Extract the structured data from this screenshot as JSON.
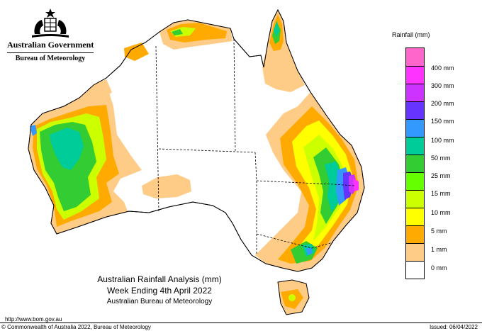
{
  "header": {
    "gov_title": "Australian Government",
    "agency": "Bureau of Meteorology"
  },
  "legend": {
    "title": "Rainfall (mm)",
    "bins": [
      {
        "label": "",
        "color": "#ff66cc"
      },
      {
        "label": "400 mm",
        "color": "#ff33ff"
      },
      {
        "label": "300 mm",
        "color": "#cc33ff"
      },
      {
        "label": "200 mm",
        "color": "#6633ff"
      },
      {
        "label": "150 mm",
        "color": "#3399ff"
      },
      {
        "label": "100 mm",
        "color": "#00cc99"
      },
      {
        "label": "50 mm",
        "color": "#33cc33"
      },
      {
        "label": "25 mm",
        "color": "#66ff00"
      },
      {
        "label": "15 mm",
        "color": "#ccff00"
      },
      {
        "label": "10 mm",
        "color": "#ffff00"
      },
      {
        "label": "5 mm",
        "color": "#ffaa00"
      },
      {
        "label": "1 mm",
        "color": "#ffcc88"
      },
      {
        "label": "0 mm",
        "color": "#ffffff"
      }
    ]
  },
  "caption": {
    "title": "Australian Rainfall Analysis (mm)",
    "week": "Week Ending 4th April 2022",
    "org": "Australian Bureau of Meteorology"
  },
  "footer": {
    "url": "http://www.bom.gov.au",
    "copyright": "© Commonwealth of Australia 2022, Bureau of Meteorology",
    "issued": "Issued: 06/04/2022"
  }
}
